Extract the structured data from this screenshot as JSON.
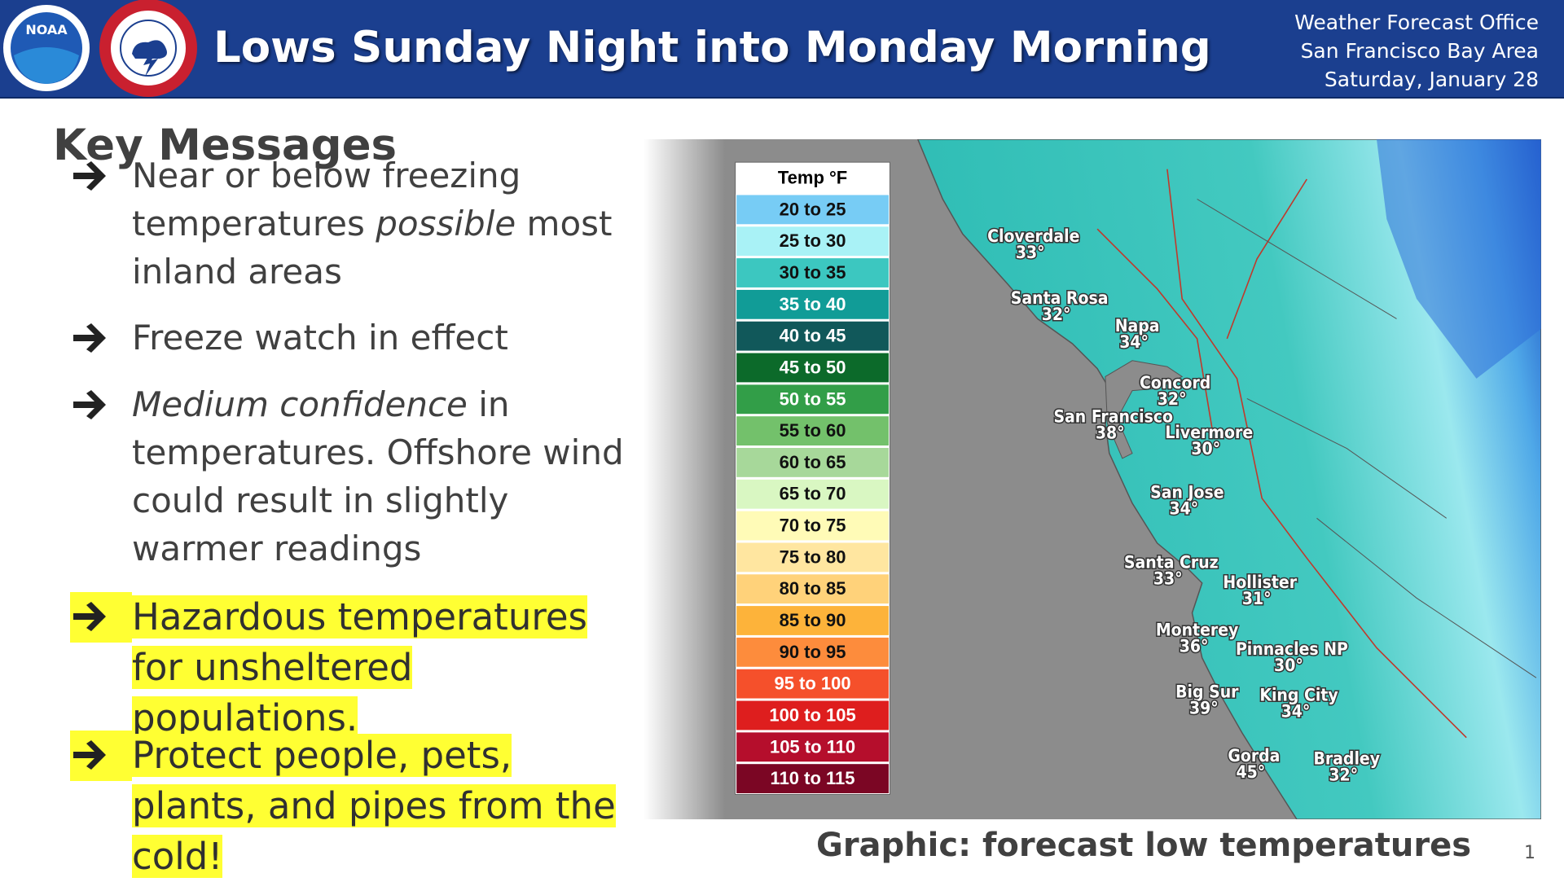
{
  "header": {
    "title": "Lows Sunday Night into Monday Morning",
    "logo": "NOAA",
    "office": [
      "Weather Forecast Office",
      "San Francisco Bay Area",
      "Saturday, January 28"
    ]
  },
  "key_messages": {
    "title": "Key Messages",
    "bullets": [
      {
        "highlight": false,
        "parts": [
          {
            "text": "Near or below freezing temperatures ",
            "italic": false
          },
          {
            "text": "possible",
            "italic": true
          },
          {
            "text": " most inland areas",
            "italic": false
          }
        ]
      },
      {
        "highlight": false,
        "parts": [
          {
            "text": "Freeze watch in effect",
            "italic": false
          }
        ]
      },
      {
        "highlight": false,
        "parts": [
          {
            "text": "Medium confidence",
            "italic": true
          },
          {
            "text": " in temperatures. Offshore wind could result in slightly warmer readings",
            "italic": false
          }
        ]
      },
      {
        "highlight": true,
        "parts": [
          {
            "text": "Hazardous temperatures for unsheltered populations.",
            "italic": false
          }
        ]
      },
      {
        "highlight": true,
        "parts": [
          {
            "text": "Protect people, pets, plants, and pipes from the cold!",
            "italic": false
          }
        ]
      }
    ]
  },
  "legend": {
    "title": "Temp °F",
    "entries": [
      {
        "label": "20 to 25",
        "color": "#77ccf5"
      },
      {
        "label": "25 to 30",
        "color": "#a9f2f6"
      },
      {
        "label": "30 to 35",
        "color": "#3cc7c0"
      },
      {
        "label": "35 to 40",
        "color": "#119c97"
      },
      {
        "label": "40 to 45",
        "color": "#11585a"
      },
      {
        "label": "45 to 50",
        "color": "#0c6a2a"
      },
      {
        "label": "50 to 55",
        "color": "#329e48"
      },
      {
        "label": "55 to 60",
        "color": "#73c16b"
      },
      {
        "label": "60 to 65",
        "color": "#a7d89a"
      },
      {
        "label": "65 to 70",
        "color": "#d9f7c2"
      },
      {
        "label": "70 to 75",
        "color": "#fffbb7"
      },
      {
        "label": "75 to 80",
        "color": "#ffe6a0"
      },
      {
        "label": "80 to 85",
        "color": "#ffd27a"
      },
      {
        "label": "85 to 90",
        "color": "#fdb33a"
      },
      {
        "label": "90 to 95",
        "color": "#fd8c3c"
      },
      {
        "label": "95 to 100",
        "color": "#f5502b"
      },
      {
        "label": "100 to 105",
        "color": "#de1e1e"
      },
      {
        "label": "105 to 110",
        "color": "#b50e2c"
      },
      {
        "label": "110 to 115",
        "color": "#7b0624"
      }
    ]
  },
  "cities": [
    {
      "name": "Cloverdale",
      "temp": "33°"
    },
    {
      "name": "Santa Rosa",
      "temp": "32°"
    },
    {
      "name": "Napa",
      "temp": "34°"
    },
    {
      "name": "Concord",
      "temp": "32°"
    },
    {
      "name": "San Francisco",
      "temp": "38°"
    },
    {
      "name": "Livermore",
      "temp": "30°"
    },
    {
      "name": "San Jose",
      "temp": "34°"
    },
    {
      "name": "Santa Cruz",
      "temp": "33°"
    },
    {
      "name": "Hollister",
      "temp": "31°"
    },
    {
      "name": "Monterey",
      "temp": "36°"
    },
    {
      "name": "Pinnacles NP",
      "temp": "30°"
    },
    {
      "name": "Big Sur",
      "temp": "39°"
    },
    {
      "name": "King City",
      "temp": "34°"
    },
    {
      "name": "Gorda",
      "temp": "45°"
    },
    {
      "name": "Bradley",
      "temp": "32°"
    }
  ],
  "caption": "Graphic: forecast low temperatures",
  "page_number": "1"
}
